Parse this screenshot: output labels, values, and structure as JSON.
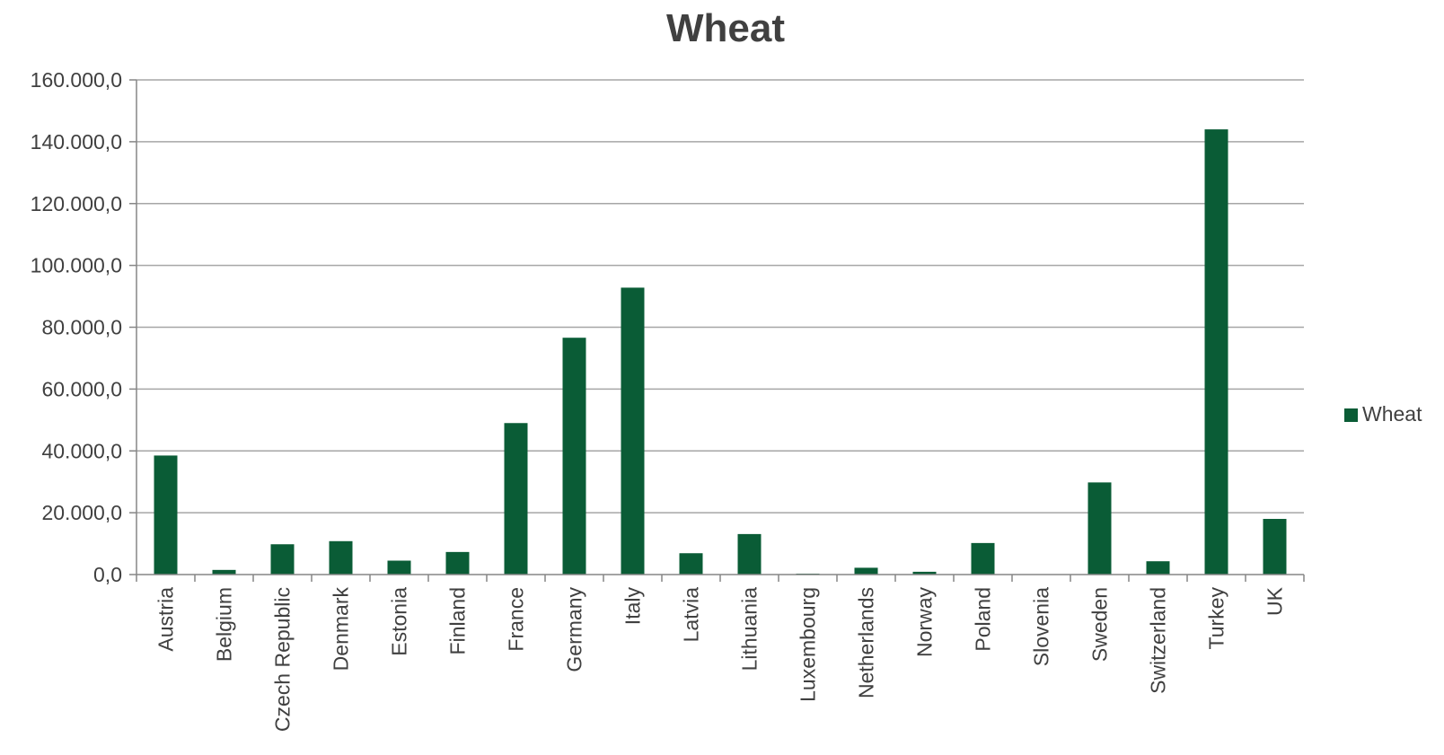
{
  "chart_data": {
    "type": "bar",
    "title": "Wheat",
    "xlabel": "",
    "ylabel": "",
    "categories": [
      "Austria",
      "Belgium",
      "Czech Republic",
      "Denmark",
      "Estonia",
      "Finland",
      "France",
      "Germany",
      "Italy",
      "Latvia",
      "Lithuania",
      "Luxembourg",
      "Netherlands",
      "Norway",
      "Poland",
      "Slovenia",
      "Sweden",
      "Switzerland",
      "Turkey",
      "UK"
    ],
    "series": [
      {
        "name": "Wheat",
        "values": [
          38500,
          1500,
          9800,
          10800,
          4500,
          7300,
          49000,
          76600,
          92800,
          6900,
          13100,
          300,
          2200,
          900,
          10200,
          0,
          29800,
          4300,
          144000,
          18000
        ]
      }
    ],
    "ylim": [
      0,
      160000
    ],
    "yticks": [
      0,
      20000,
      40000,
      60000,
      80000,
      100000,
      120000,
      140000,
      160000
    ],
    "ytick_labels": [
      "0,0",
      "20.000,0",
      "40.000,0",
      "60.000,0",
      "80.000,0",
      "100.000,0",
      "120.000,0",
      "140.000,0",
      "160.000,0"
    ],
    "grid": true,
    "legend_position": "right",
    "colors": {
      "bar": "#0a5c36",
      "grid": "#a6a6a6",
      "axis": "#868686",
      "text": "#404040"
    }
  }
}
